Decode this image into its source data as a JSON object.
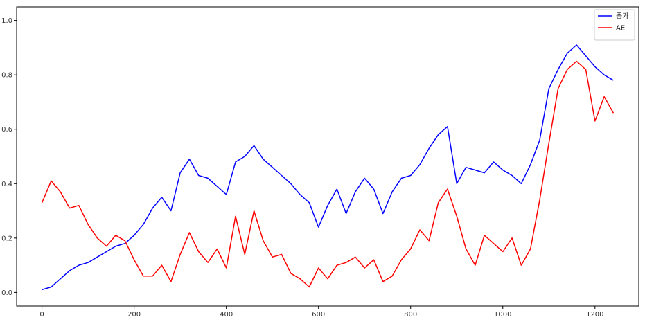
{
  "chart_data": {
    "type": "line",
    "title": "",
    "xlabel": "",
    "ylabel": "",
    "xlim": [
      -55,
      1295
    ],
    "ylim": [
      -0.05,
      1.05
    ],
    "x_ticks": [
      0,
      200,
      400,
      600,
      800,
      1000,
      1200
    ],
    "y_ticks": [
      0.0,
      0.2,
      0.4,
      0.6,
      0.8,
      1.0
    ],
    "x_tick_labels": [
      "0",
      "200",
      "400",
      "600",
      "800",
      "1000",
      "1200"
    ],
    "y_tick_labels": [
      "0.0",
      "0.2",
      "0.4",
      "0.6",
      "0.8",
      "1.0"
    ],
    "grid": false,
    "legend_position": "top-right",
    "series": [
      {
        "name": "종가",
        "color": "#0000ff",
        "x": [
          0,
          20,
          40,
          60,
          80,
          100,
          120,
          140,
          160,
          180,
          200,
          220,
          240,
          260,
          280,
          300,
          320,
          340,
          360,
          380,
          400,
          420,
          440,
          460,
          480,
          500,
          520,
          540,
          560,
          580,
          600,
          620,
          640,
          660,
          680,
          700,
          720,
          740,
          760,
          780,
          800,
          820,
          840,
          860,
          880,
          900,
          920,
          940,
          960,
          980,
          1000,
          1020,
          1040,
          1060,
          1080,
          1100,
          1120,
          1140,
          1160,
          1180,
          1200,
          1220,
          1240
        ],
        "y": [
          0.01,
          0.02,
          0.05,
          0.08,
          0.1,
          0.11,
          0.13,
          0.15,
          0.17,
          0.18,
          0.21,
          0.25,
          0.31,
          0.35,
          0.3,
          0.44,
          0.49,
          0.43,
          0.42,
          0.39,
          0.36,
          0.48,
          0.5,
          0.54,
          0.49,
          0.46,
          0.43,
          0.4,
          0.36,
          0.33,
          0.24,
          0.32,
          0.38,
          0.29,
          0.37,
          0.42,
          0.38,
          0.29,
          0.37,
          0.42,
          0.43,
          0.47,
          0.53,
          0.58,
          0.61,
          0.4,
          0.46,
          0.45,
          0.44,
          0.48,
          0.45,
          0.43,
          0.4,
          0.47,
          0.56,
          0.75,
          0.82,
          0.88,
          0.91,
          0.87,
          0.83,
          0.8,
          0.78
        ]
      },
      {
        "name": "AE",
        "color": "#ff0000",
        "x": [
          0,
          20,
          40,
          60,
          80,
          100,
          120,
          140,
          160,
          180,
          200,
          220,
          240,
          260,
          280,
          300,
          320,
          340,
          360,
          380,
          400,
          420,
          440,
          460,
          480,
          500,
          520,
          540,
          560,
          580,
          600,
          620,
          640,
          660,
          680,
          700,
          720,
          740,
          760,
          780,
          800,
          820,
          840,
          860,
          880,
          900,
          920,
          940,
          960,
          980,
          1000,
          1020,
          1040,
          1060,
          1080,
          1100,
          1120,
          1140,
          1160,
          1180,
          1200,
          1220,
          1240
        ],
        "y": [
          0.33,
          0.41,
          0.37,
          0.31,
          0.32,
          0.25,
          0.2,
          0.17,
          0.21,
          0.19,
          0.12,
          0.06,
          0.06,
          0.1,
          0.04,
          0.14,
          0.22,
          0.15,
          0.11,
          0.16,
          0.09,
          0.28,
          0.14,
          0.3,
          0.19,
          0.13,
          0.14,
          0.07,
          0.05,
          0.02,
          0.09,
          0.05,
          0.1,
          0.11,
          0.13,
          0.09,
          0.12,
          0.04,
          0.06,
          0.12,
          0.16,
          0.23,
          0.19,
          0.33,
          0.38,
          0.28,
          0.16,
          0.1,
          0.21,
          0.18,
          0.15,
          0.2,
          0.1,
          0.16,
          0.34,
          0.55,
          0.75,
          0.82,
          0.85,
          0.82,
          0.63,
          0.72,
          0.66
        ]
      }
    ]
  }
}
